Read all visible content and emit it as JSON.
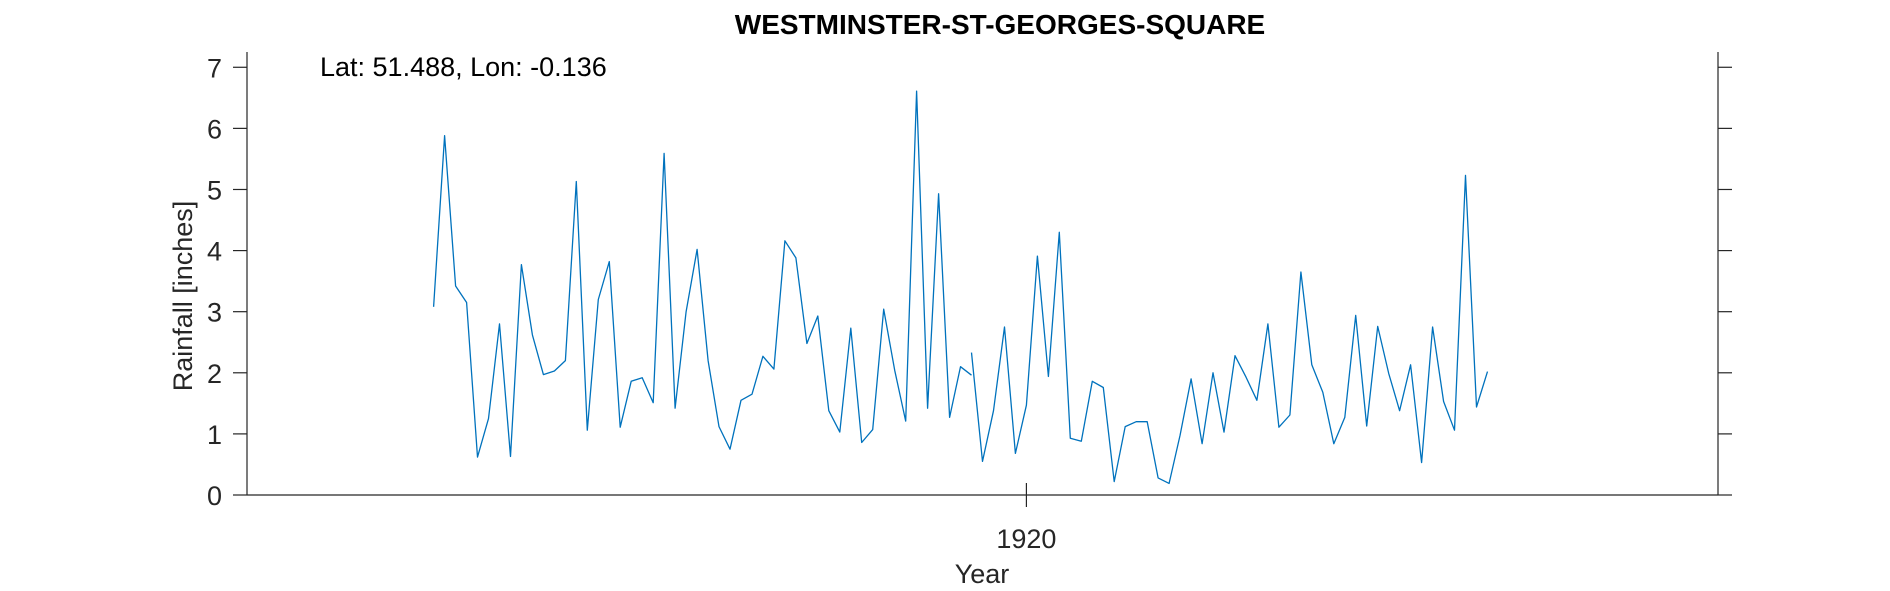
{
  "chart_data": {
    "type": "line",
    "title": "WESTMINSTER-ST-GEORGES-SQUARE",
    "xlabel": "Year",
    "ylabel": "Rainfall [inches]",
    "annotation": "Lat: 51.488, Lon: -0.136",
    "ylim": [
      0,
      7.25
    ],
    "yticks": [
      "0",
      "1",
      "2",
      "3",
      "4",
      "5",
      "6",
      "7"
    ],
    "xticks": [
      {
        "value": 1920,
        "label": "1920"
      }
    ],
    "xlim_months": [
      -71,
      63
    ],
    "grid": false,
    "colors": {
      "series": "#0072BD",
      "axis": "#262626"
    },
    "series": [
      {
        "segments": [
          {
            "start_month": -54,
            "values": [
              3.08,
              5.88,
              3.42,
              3.15,
              0.62,
              1.25,
              2.8,
              0.63,
              3.77,
              2.62,
              1.97,
              2.03,
              2.2,
              5.13,
              1.06,
              3.2,
              3.82,
              1.11,
              1.86,
              1.92,
              1.51,
              5.59,
              1.42,
              3.0,
              4.02,
              2.2,
              1.12,
              0.75,
              1.55,
              1.65,
              2.27,
              2.06,
              4.16,
              3.88,
              2.48,
              2.93,
              1.38,
              1.03,
              2.73,
              0.86,
              1.07,
              3.04,
              2.04,
              1.21,
              6.61,
              1.42,
              4.93,
              1.27,
              2.1,
              1.96
            ]
          },
          {
            "start_month": -5,
            "values": [
              2.33,
              0.55,
              1.38,
              2.75,
              0.68,
              1.47,
              3.91,
              1.94,
              4.3,
              0.93,
              0.88,
              1.86,
              1.76,
              0.22,
              1.12,
              1.2,
              1.2,
              0.28,
              0.19,
              0.98,
              1.9,
              0.84,
              2.0,
              1.03,
              2.28,
              1.93,
              1.55,
              2.8,
              1.11,
              1.31,
              3.65,
              2.13,
              1.68,
              0.84,
              1.27,
              2.94,
              1.13,
              2.76,
              1.99,
              1.38,
              2.13,
              0.53,
              2.75,
              1.53,
              1.06,
              5.23,
              1.44,
              2.02
            ]
          }
        ]
      }
    ]
  }
}
